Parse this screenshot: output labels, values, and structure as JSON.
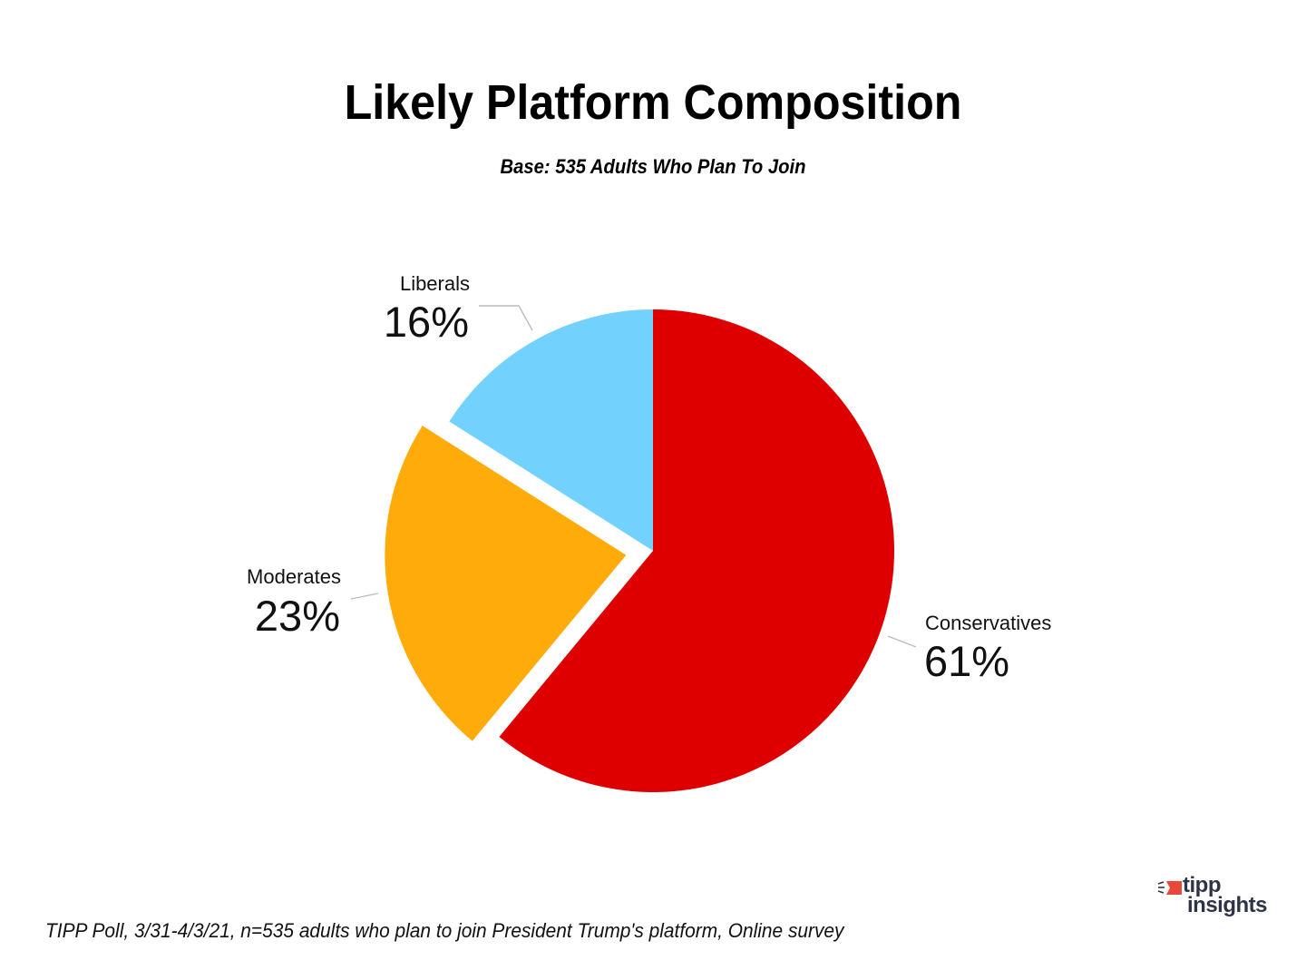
{
  "header": {
    "title": "Likely Platform Composition",
    "subtitle": "Base: 535 Adults Who Plan To Join"
  },
  "chart_data": {
    "type": "pie",
    "title": "Likely Platform Composition",
    "subtitle": "Base: 535 Adults Who Plan To Join",
    "categories": [
      "Conservatives",
      "Moderates",
      "Liberals"
    ],
    "values": [
      61,
      23,
      16
    ],
    "labels": [
      "61%",
      "23%",
      "16%"
    ],
    "colors": [
      "#DE0000",
      "#FFAC0B",
      "#72D2FD"
    ],
    "exploded": [
      "Moderates"
    ],
    "start_angle": "12 o'clock, clockwise",
    "legend": "none (direct labels with leader lines)"
  },
  "slices": [
    {
      "name": "Conservatives",
      "pct": "61%"
    },
    {
      "name": "Moderates",
      "pct": "23%"
    },
    {
      "name": "Liberals",
      "pct": "16%"
    }
  ],
  "footer": {
    "note": "TIPP Poll, 3/31-4/3/21, n=535 adults who plan to join President Trump's platform, Online survey"
  },
  "logo": {
    "line1": "tipp",
    "line2": "insights",
    "accent": "#E8473C",
    "text_color": "#2E3447"
  }
}
